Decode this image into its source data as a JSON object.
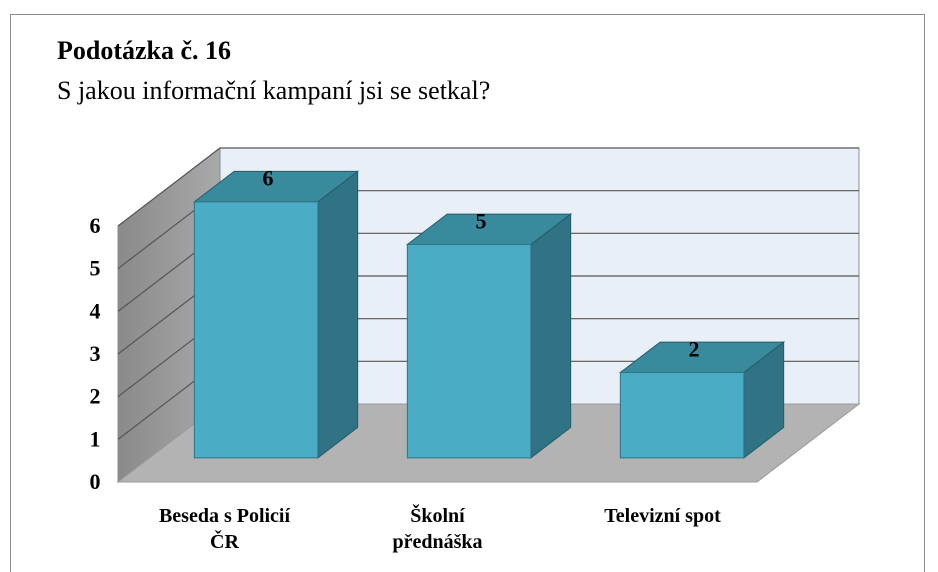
{
  "chart_data": {
    "type": "bar3d",
    "title": "Podotázka č. 16",
    "subtitle": "S jakou informační kampaní jsi se setkal?",
    "categories": [
      "Beseda s Policií\nČR",
      "Školní\npřednáška",
      "Televizní spot"
    ],
    "values": [
      6,
      5,
      2
    ],
    "color": "#4bacc6",
    "ylim": [
      0,
      6
    ],
    "yticks": [
      0,
      1,
      2,
      3,
      4,
      5,
      6
    ],
    "grid": true
  }
}
